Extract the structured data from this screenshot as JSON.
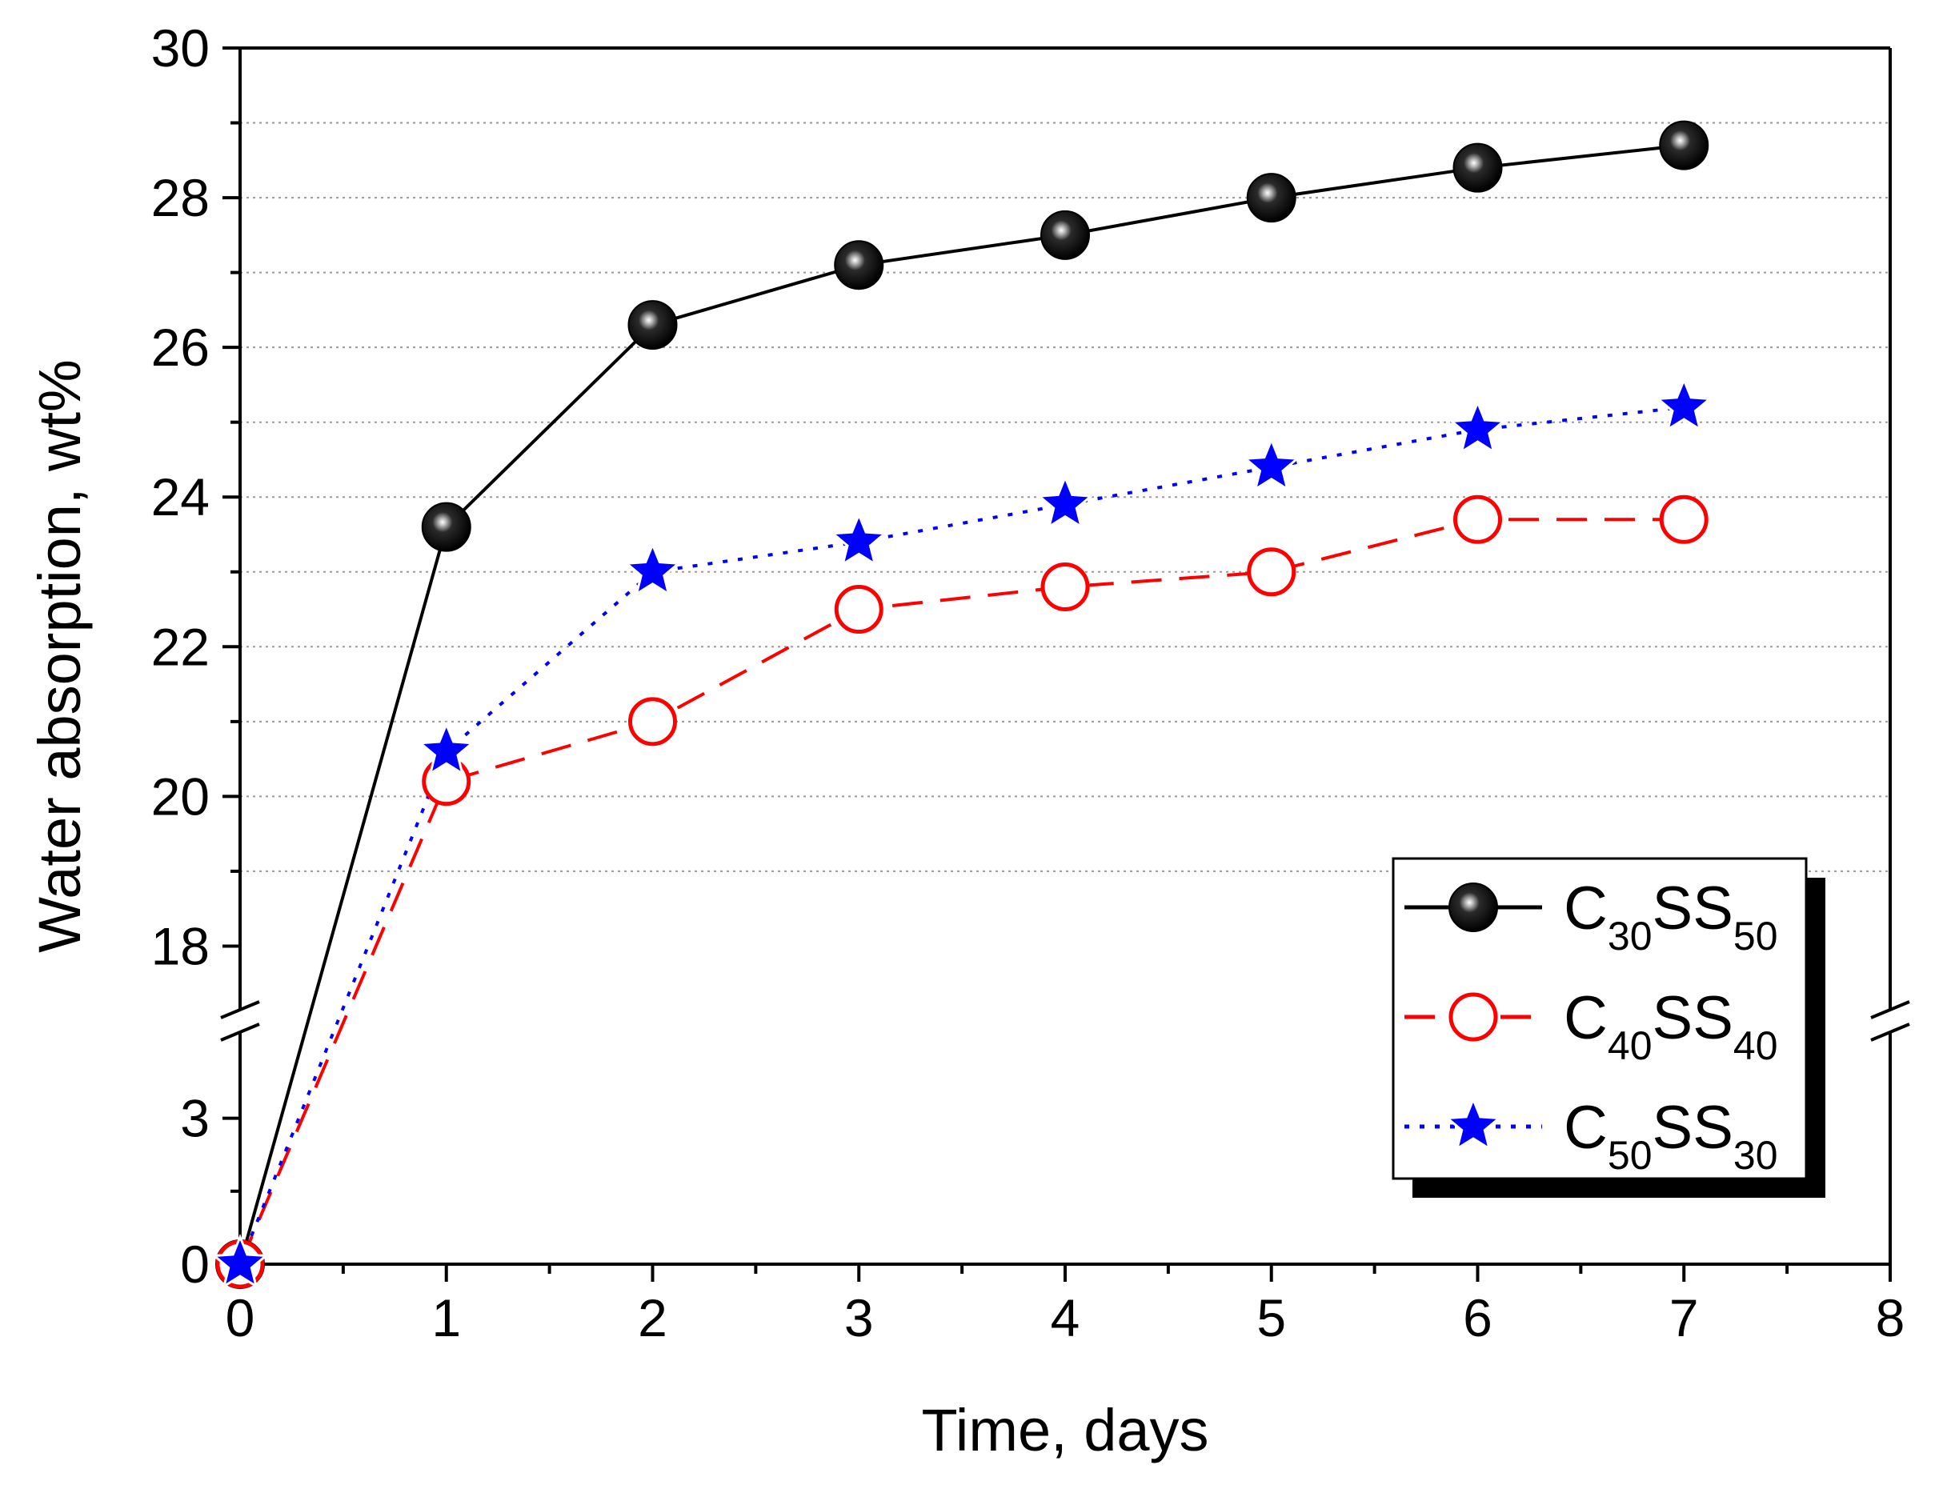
{
  "chart_data": {
    "type": "line",
    "xlabel": "Time, days",
    "ylabel": "Water absorption, wt%",
    "xlim": [
      0,
      8
    ],
    "x_ticks": [
      "0",
      "1",
      "2",
      "3",
      "4",
      "5",
      "6",
      "7",
      "8"
    ],
    "y_axis_break": {
      "lower_range": [
        0,
        5
      ],
      "upper_range": [
        17,
        30
      ]
    },
    "y_ticks": [
      "0",
      "3",
      "18",
      "20",
      "22",
      "24",
      "26",
      "28",
      "30"
    ],
    "grid": "horizontal dotted (upper segment)",
    "legend_position": "middle-right, with drop shadow",
    "x": [
      0,
      1,
      2,
      3,
      4,
      5,
      6,
      7
    ],
    "series": [
      {
        "name": "C30SS50",
        "legend": {
          "a": "C",
          "a_sub": "30",
          "b": "SS",
          "b_sub": "50"
        },
        "color": "#000000",
        "line_style": "solid",
        "marker": "filled-sphere",
        "values": [
          0,
          23.6,
          26.3,
          27.1,
          27.5,
          28.0,
          28.4,
          28.7
        ]
      },
      {
        "name": "C40SS40",
        "legend": {
          "a": "C",
          "a_sub": "40",
          "b": "SS",
          "b_sub": "40"
        },
        "color": "#ff0000",
        "line_style": "dashed",
        "marker": "open-circle",
        "values": [
          0,
          20.2,
          21.0,
          22.5,
          22.8,
          23.0,
          23.7,
          23.7
        ]
      },
      {
        "name": "C50SS30",
        "legend": {
          "a": "C",
          "a_sub": "50",
          "b": "SS",
          "b_sub": "30"
        },
        "color": "#0000ff",
        "line_style": "dotted",
        "marker": "star",
        "values": [
          0,
          20.6,
          23.0,
          23.4,
          23.9,
          24.4,
          24.9,
          25.2
        ]
      }
    ]
  }
}
